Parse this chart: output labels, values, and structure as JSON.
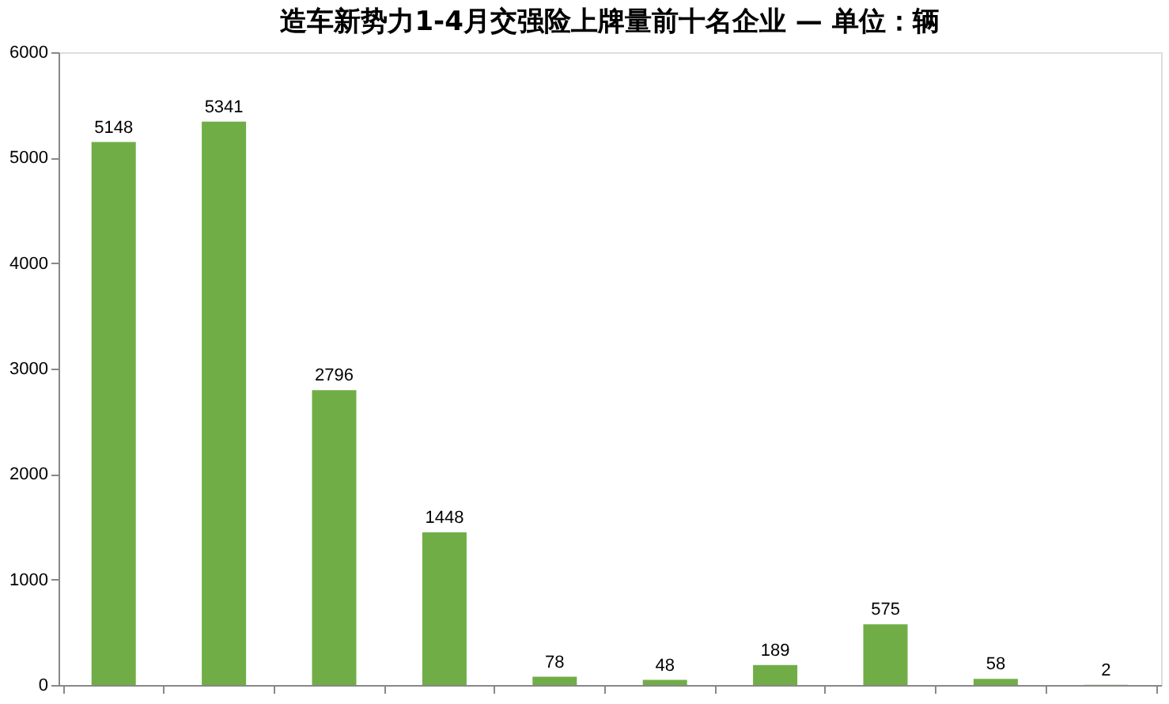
{
  "chart_data": {
    "type": "bar",
    "title": "造车新势力1-4月交强险上牌量前十名企业 — 单位：辆",
    "categories": [
      null,
      null,
      null,
      null,
      null,
      null,
      null,
      null,
      null,
      null
    ],
    "values": [
      5148,
      5341,
      2796,
      1448,
      78,
      48,
      189,
      575,
      58,
      2
    ],
    "color": "#70ad47",
    "ylim": [
      0,
      6000
    ],
    "yticks": [
      0,
      1000,
      2000,
      3000,
      4000,
      5000,
      6000
    ],
    "grid": false,
    "data_labels": true
  }
}
